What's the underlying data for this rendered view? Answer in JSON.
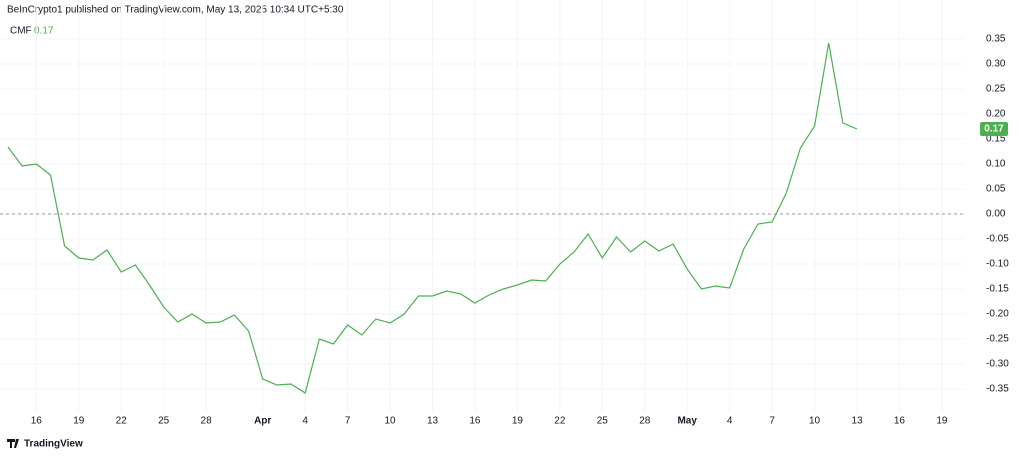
{
  "header": {
    "published": "BeInCrypto1 published on TradingView.com, May 13, 2025 10:34 UTC+5:30",
    "brand": "TradingView"
  },
  "chart_data": {
    "type": "line",
    "title": "CMF",
    "current_value": 0.17,
    "categories": [
      null,
      null,
      "16",
      null,
      null,
      "19",
      null,
      null,
      "22",
      null,
      null,
      "25",
      null,
      null,
      "28",
      null,
      null,
      null,
      "Apr",
      null,
      null,
      "4",
      null,
      null,
      "7",
      null,
      null,
      "10",
      null,
      null,
      "13",
      null,
      null,
      "16",
      null,
      null,
      "19",
      null,
      null,
      "22",
      null,
      null,
      "25",
      null,
      null,
      "28",
      null,
      null,
      "May",
      null,
      null,
      "4",
      null,
      null,
      "7",
      null,
      null,
      "10",
      null,
      null,
      "13",
      null,
      null,
      "16",
      null,
      null,
      "19"
    ],
    "series": [
      {
        "name": "CMF",
        "color": "#4caf50",
        "values": [
          0.134,
          0.096,
          0.1,
          0.078,
          -0.064,
          -0.088,
          -0.092,
          -0.072,
          -0.116,
          -0.102,
          -0.142,
          -0.186,
          -0.216,
          -0.2,
          -0.218,
          -0.216,
          -0.202,
          -0.234,
          -0.33,
          -0.342,
          -0.34,
          -0.358,
          -0.25,
          -0.26,
          -0.222,
          -0.242,
          -0.21,
          -0.218,
          -0.2,
          -0.164,
          -0.164,
          -0.154,
          -0.16,
          -0.178,
          -0.162,
          -0.15,
          -0.142,
          -0.132,
          -0.134,
          -0.1,
          -0.076,
          -0.04,
          -0.088,
          -0.046,
          -0.076,
          -0.054,
          -0.074,
          -0.06,
          -0.11,
          -0.15,
          -0.144,
          -0.148,
          -0.07,
          -0.02,
          -0.016,
          0.042,
          0.132,
          0.176,
          0.342,
          0.182,
          0.17,
          null,
          null,
          null,
          null,
          null,
          null
        ]
      }
    ],
    "reference_line": 0,
    "ylim": [
      -0.382,
      0.388
    ],
    "yticks": [
      0.35,
      {
        "value": 0.3,
        "label": "0.30"
      },
      0.25,
      {
        "value": 0.2,
        "label": "0.20"
      },
      0.15,
      {
        "value": 0.1,
        "label": "0.10"
      },
      0.05,
      {
        "value": 0,
        "label": "0.00"
      },
      -0.05,
      {
        "value": -0.1,
        "label": "-0.10"
      },
      -0.15,
      {
        "value": -0.2,
        "label": "-0.20"
      },
      -0.25,
      {
        "value": -0.3,
        "label": "-0.30"
      },
      -0.35
    ],
    "grid": true
  }
}
